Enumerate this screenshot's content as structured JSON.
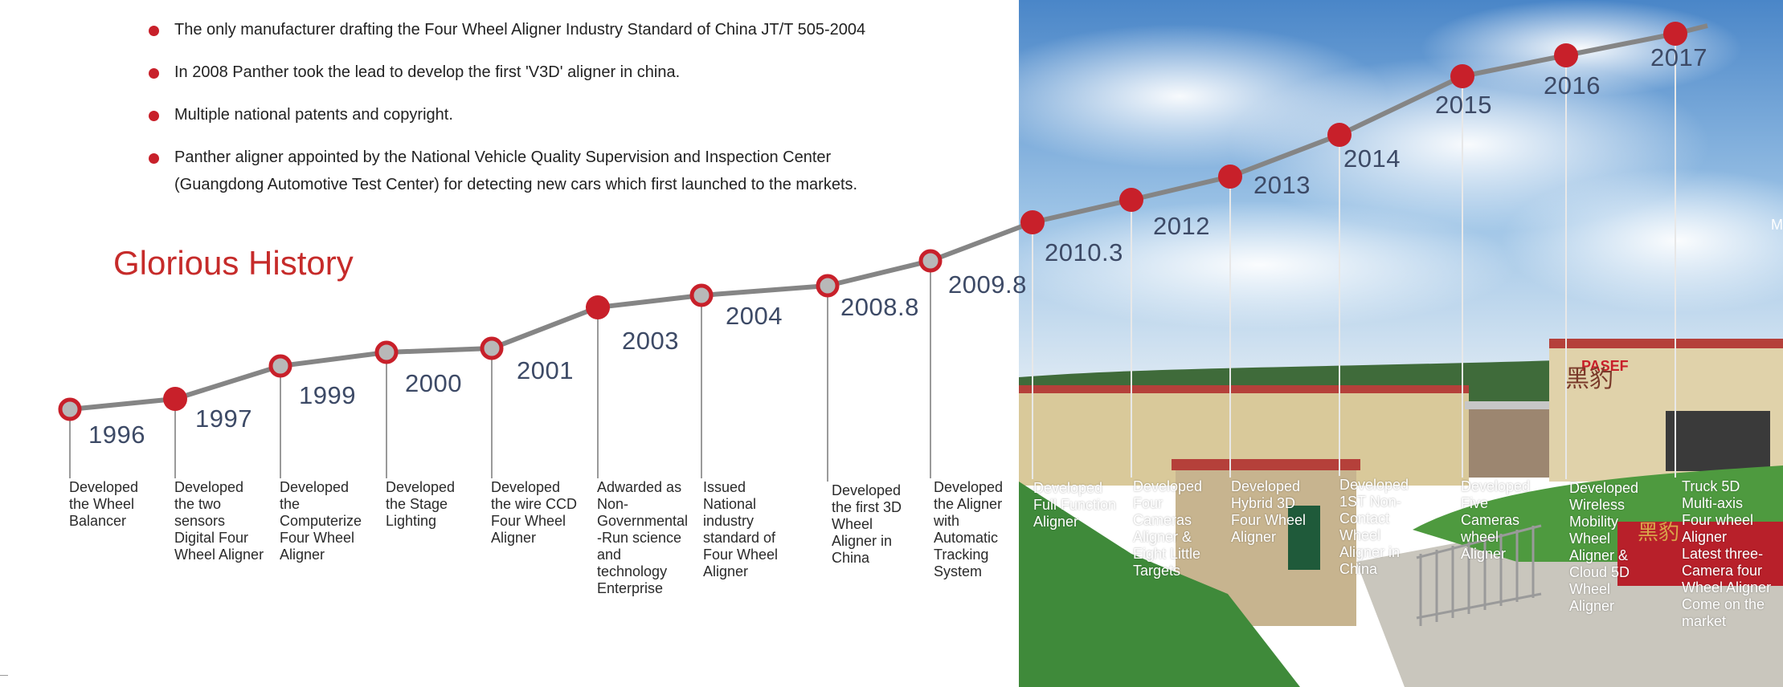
{
  "bullets": [
    "The only manufacturer drafting the Four Wheel Aligner Industry Standard of China JT/T 505-2004",
    "In 2008 Panther took the lead to develop the first 'V3D' aligner in china.",
    "Multiple national patents and copyright.",
    "Panther aligner appointed by the National Vehicle Quality Supervision and Inspection Center\n(Guangdong Automotive Test Center) for detecting new cars which first launched to the markets."
  ],
  "section_title": "Glorious History",
  "edge_label": "M",
  "photo_signage": {
    "brand": "PASEF",
    "chinese_logo": "黑豹",
    "chinese_text": "黑豹"
  },
  "colors": {
    "accent_red": "#c62b2a",
    "timeline_line": "#858585",
    "marker_red": "#c8202a",
    "marker_gray": "#b8b8b8",
    "year_text": "#3d4a66"
  },
  "timeline": [
    {
      "year": "1996",
      "marker": "hollow",
      "description": "Developed\nthe Wheel\nBalancer"
    },
    {
      "year": "1997",
      "marker": "solid",
      "description": "Developed\nthe two\nsensors\nDigital Four\nWheel Aligner"
    },
    {
      "year": "1999",
      "marker": "hollow",
      "description": "Developed\nthe\nComputerize\nFour Wheel\nAligner"
    },
    {
      "year": "2000",
      "marker": "hollow",
      "description": "Developed\nthe Stage\nLighting"
    },
    {
      "year": "2001",
      "marker": "hollow",
      "description": "Developed\nthe wire CCD\nFour Wheel\nAligner"
    },
    {
      "year": "2003",
      "marker": "solid",
      "description": "Adwarded as\nNon-\nGovernmental\n-Run science\nand\ntechnology\nEnterprise"
    },
    {
      "year": "2004",
      "marker": "hollow",
      "description": "Issued\nNational\nindustry\nstandard of\nFour Wheel\nAligner"
    },
    {
      "year": "2008.8",
      "marker": "hollow",
      "description": "Developed\nthe first 3D\nWheel\nAligner in\nChina"
    },
    {
      "year": "2009.8",
      "marker": "hollow",
      "description": "Developed\nthe Aligner\nwith\nAutomatic\nTracking\nSystem"
    },
    {
      "year": "2010.3",
      "marker": "solid",
      "description": "Developed\nFull Function\nAligner"
    },
    {
      "year": "2012",
      "marker": "solid",
      "description": "Developed\nFour\nCameras\nAligner &\nEight Little\nTargets"
    },
    {
      "year": "2013",
      "marker": "solid",
      "description": "Developed\nHybrid 3D\nFour Wheel\nAligner"
    },
    {
      "year": "2014",
      "marker": "solid",
      "description": "Developed\n1ST Non-\nContact\nWheel\nAligner in\nChina"
    },
    {
      "year": "2015",
      "marker": "solid",
      "description": "Developed\nFive\nCameras\nwheel\nAligner"
    },
    {
      "year": "2016",
      "marker": "solid",
      "description": "Developed\nWireless\nMobility\nWheel\nAligner &\nCloud 5D\nWheel\nAligner"
    },
    {
      "year": "2017",
      "marker": "solid",
      "description": "Truck 5D\nMulti-axis\nFour wheel\nAligner\nLatest three-\nCamera four\nWheel Aligner\nCome on the\nmarket"
    }
  ]
}
